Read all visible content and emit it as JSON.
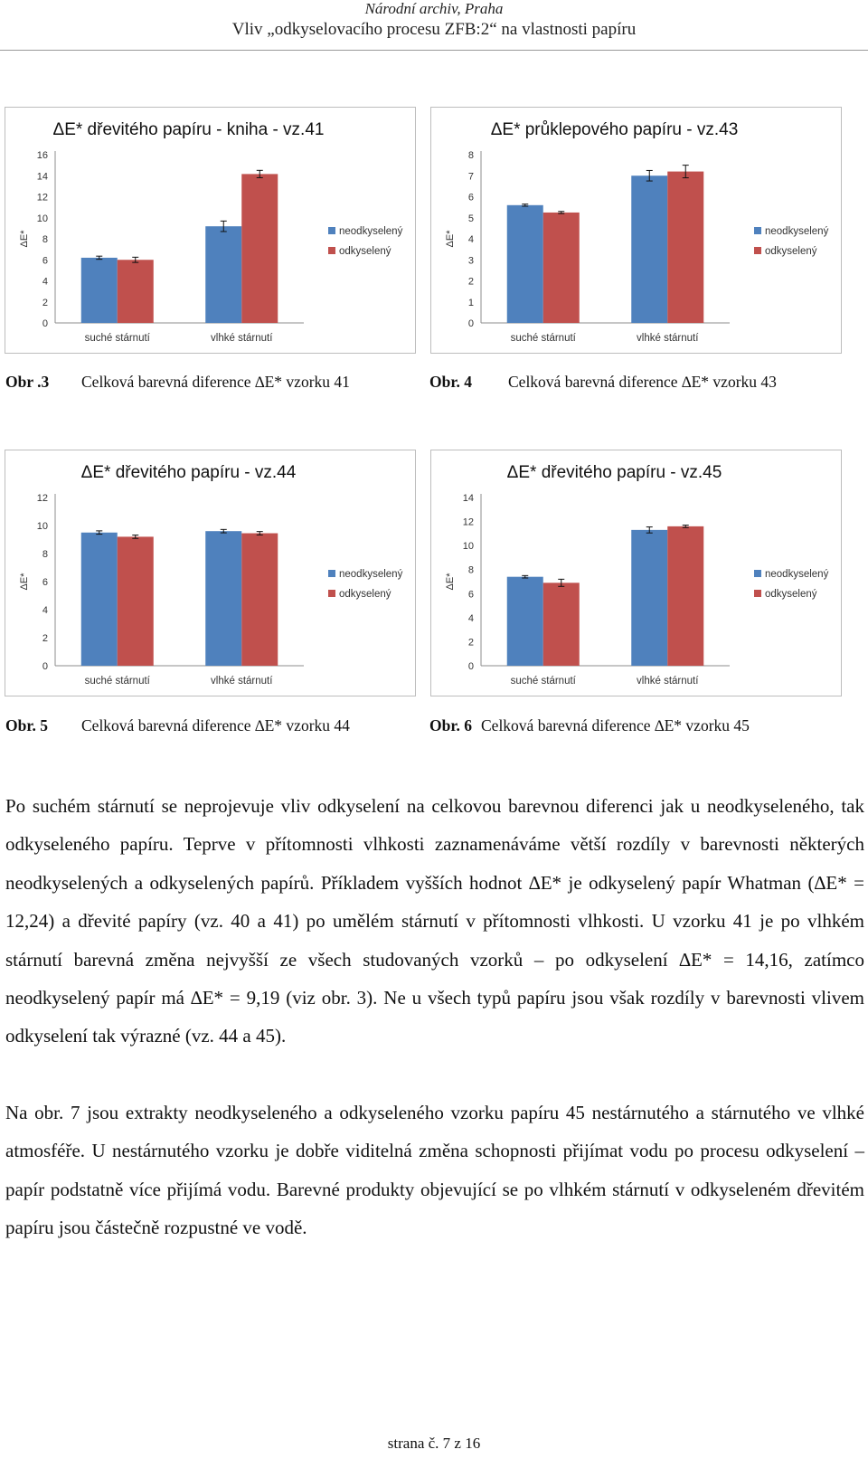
{
  "header": {
    "line1": "Národní archiv, Praha",
    "line2": "Vliv „odkyselovacího procesu ZFB:2“ na vlastnosti papíru"
  },
  "colors": {
    "neodkyseleny": "#4F81BD",
    "odkyseleny": "#C0504D"
  },
  "chart_data": [
    {
      "type": "bar",
      "title": "ΔE* dřevitého papíru - kniha - vz.41",
      "ylabel": "ΔE*",
      "categories": [
        "suché stárnutí",
        "vlhké stárnutí"
      ],
      "series": [
        {
          "name": "neodkyselený",
          "values": [
            6.2,
            9.19
          ],
          "errors": [
            0.15,
            0.5
          ]
        },
        {
          "name": "odkyselený",
          "values": [
            6.0,
            14.16
          ],
          "errors": [
            0.25,
            0.35
          ]
        }
      ],
      "ylim": [
        0,
        16
      ],
      "yticks": [
        0,
        2,
        4,
        6,
        8,
        10,
        12,
        14,
        16
      ],
      "legend": "right"
    },
    {
      "type": "bar",
      "title": "ΔE* průklepového papíru - vz.43",
      "ylabel": "ΔE*",
      "categories": [
        "suché stárnutí",
        "vlhké stárnutí"
      ],
      "series": [
        {
          "name": "neodkyselený",
          "values": [
            5.6,
            7.0
          ],
          "errors": [
            0.05,
            0.25
          ]
        },
        {
          "name": "odkyselený",
          "values": [
            5.25,
            7.2
          ],
          "errors": [
            0.05,
            0.3
          ]
        }
      ],
      "ylim": [
        0,
        8
      ],
      "yticks": [
        0,
        1,
        2,
        3,
        4,
        5,
        6,
        7,
        8
      ],
      "legend": "right"
    },
    {
      "type": "bar",
      "title": "ΔE* dřevitého papíru - vz.44",
      "ylabel": "ΔE*",
      "categories": [
        "suché stárnutí",
        "vlhké stárnutí"
      ],
      "series": [
        {
          "name": "neodkyselený",
          "values": [
            9.5,
            9.6
          ],
          "errors": [
            0.12,
            0.12
          ]
        },
        {
          "name": "odkyselený",
          "values": [
            9.2,
            9.45
          ],
          "errors": [
            0.12,
            0.12
          ]
        }
      ],
      "ylim": [
        0,
        12
      ],
      "yticks": [
        0,
        2,
        4,
        6,
        8,
        10,
        12
      ],
      "legend": "right"
    },
    {
      "type": "bar",
      "title": "ΔE* dřevitého papíru - vz.45",
      "ylabel": "ΔE*",
      "categories": [
        "suché stárnutí",
        "vlhké stárnutí"
      ],
      "series": [
        {
          "name": "neodkyselený",
          "values": [
            7.4,
            11.3
          ],
          "errors": [
            0.1,
            0.25
          ]
        },
        {
          "name": "odkyselený",
          "values": [
            6.9,
            11.6
          ],
          "errors": [
            0.3,
            0.1
          ]
        }
      ],
      "ylim": [
        0,
        14
      ],
      "yticks": [
        0,
        2,
        4,
        6,
        8,
        10,
        12,
        14
      ],
      "legend": "right"
    }
  ],
  "captions": {
    "c3_label": "Obr .3",
    "c3_text": "Celková barevná diference ∆E* vzorku 41",
    "c4_label": "Obr. 4",
    "c4_text": "Celková barevná diference ∆E* vzorku 43",
    "c5_label": "Obr. 5",
    "c5_text": "Celková barevná diference ∆E* vzorku 44",
    "c6_label": "Obr. 6",
    "c6_text": "Celková barevná diference ∆E* vzorku 45"
  },
  "body": {
    "p1": "Po suchém stárnutí se neprojevuje vliv odkyselení na celkovou barevnou diferenci jak u neodkyseleného, tak odkyseleného papíru. Teprve v přítomnosti vlhkosti zaznamenáváme větší rozdíly v barevnosti některých neodkyselených a odkyselených papírů. Příkladem vyšších hodnot ∆E* je odkyselený papír Whatman (∆E* = 12,24) a dřevité papíry (vz. 40 a 41) po umělém stárnutí v přítomnosti vlhkosti. U vzorku 41 je po vlhkém stárnutí barevná změna nejvyšší ze všech studovaných vzorků – po odkyselení ∆E* = 14,16, zatímco neodkyselený papír má ∆E* = 9,19 (viz obr. 3). Ne u všech typů papíru jsou však rozdíly v barevnosti vlivem odkyselení tak výrazné (vz. 44 a 45).",
    "p2": "Na obr. 7 jsou extrakty neodkyseleného a odkyseleného vzorku papíru 45 nestárnutého a stárnutého ve vlhké atmosféře. U nestárnutého vzorku je dobře viditelná změna schopnosti přijímat vodu po procesu odkyselení – papír podstatně více přijímá vodu. Barevné produkty objevující se po vlhkém stárnutí v odkyseleném dřevitém papíru jsou částečně rozpustné ve vodě."
  },
  "footer": {
    "page": "strana č. 7 z 16"
  }
}
